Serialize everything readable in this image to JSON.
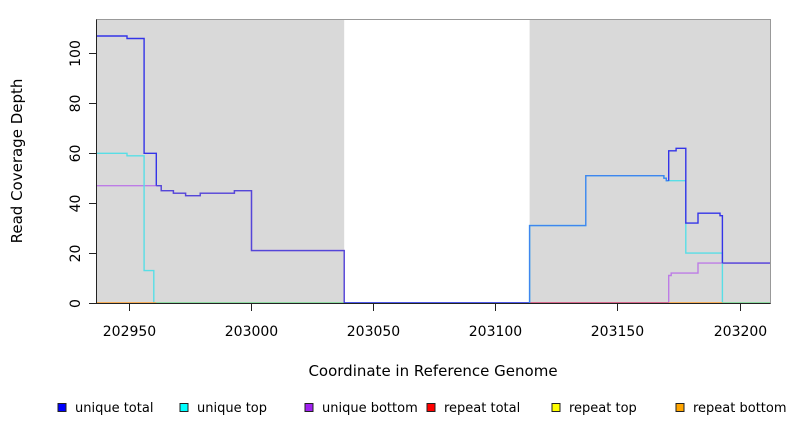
{
  "chart_data": {
    "type": "line",
    "style": "step",
    "title": "",
    "xlabel": "Coordinate in Reference Genome",
    "ylabel": "Read Coverage Depth",
    "xlim": [
      202936.5,
      203212.7
    ],
    "ylim": [
      0,
      113.6
    ],
    "xticks": [
      202950,
      203000,
      203050,
      203100,
      203150,
      203200
    ],
    "yticks": [
      0,
      20,
      40,
      60,
      80,
      100
    ],
    "grid": false,
    "legend_position": "bottom",
    "background_shading": {
      "color": "#d9d9d9",
      "regions": [
        [
          202936.5,
          203038
        ],
        [
          203114,
          203212.7
        ]
      ]
    },
    "series": [
      {
        "name": "unique total",
        "legend_color": "#0000FF",
        "segments": [
          {
            "color": "#3434e8",
            "steps": [
              [
                202936.5,
                107
              ],
              [
                202949,
                106
              ],
              [
                202956,
                60
              ],
              [
                202961,
                47
              ]
            ]
          },
          {
            "color": "#5347d8",
            "steps": [
              [
                202961,
                47
              ],
              [
                202963,
                45
              ],
              [
                202968,
                44
              ],
              [
                202973,
                43
              ],
              [
                202979,
                44
              ],
              [
                202993,
                45
              ],
              [
                203000,
                21
              ],
              [
                203038,
                0
              ]
            ]
          },
          {
            "color": "#3434e8",
            "steps": [
              [
                203038,
                0
              ],
              [
                203114,
                0
              ]
            ]
          },
          {
            "color": "#3f86ef",
            "steps": [
              [
                203114,
                0
              ],
              [
                203114,
                31
              ],
              [
                203137,
                51
              ],
              [
                203169,
                50
              ],
              [
                203170,
                49
              ],
              [
                203171,
                49
              ]
            ]
          },
          {
            "color": "#3434e8",
            "steps": [
              [
                203171,
                49
              ],
              [
                203171,
                61
              ],
              [
                203174,
                62
              ],
              [
                203178,
                32
              ],
              [
                203183,
                36
              ],
              [
                203192,
                35
              ],
              [
                203193,
                16
              ]
            ]
          },
          {
            "color": "#5347d8",
            "steps": [
              [
                203193,
                16
              ],
              [
                203212.7,
                16
              ]
            ]
          }
        ]
      },
      {
        "name": "unique top",
        "legend_color": "#00FFFF",
        "segments": [
          {
            "color": "#58dee6",
            "steps": [
              [
                202936.5,
                60
              ],
              [
                202949,
                59
              ],
              [
                202956,
                13
              ],
              [
                202960,
                0
              ],
              [
                203114,
                0
              ],
              [
                203114,
                31
              ],
              [
                203137,
                51
              ],
              [
                203169,
                50
              ],
              [
                203170,
                49
              ],
              [
                203178,
                20
              ],
              [
                203193,
                0
              ],
              [
                203212.7,
                0
              ]
            ]
          }
        ]
      },
      {
        "name": "unique bottom",
        "legend_color": "#A020F0",
        "segments": [
          {
            "color": "#bd7ce6",
            "steps": [
              [
                202936.5,
                47
              ],
              [
                202963,
                45
              ],
              [
                202968,
                44
              ],
              [
                202973,
                43
              ],
              [
                202979,
                44
              ],
              [
                202993,
                45
              ],
              [
                203000,
                21
              ],
              [
                203038,
                0
              ],
              [
                203171,
                11
              ],
              [
                203172,
                12
              ],
              [
                203183,
                16
              ],
              [
                203212.7,
                16
              ]
            ]
          }
        ]
      },
      {
        "name": "repeat total",
        "legend_color": "#FF0000",
        "segments": [
          {
            "color": "#dc5270",
            "steps": [
              [
                203114,
                0
              ],
              [
                203171,
                0
              ]
            ]
          }
        ]
      },
      {
        "name": "repeat top",
        "legend_color": "#FFFF00",
        "segments": []
      },
      {
        "name": "repeat bottom",
        "legend_color": "#FFA500",
        "segments": [
          {
            "color": "#ffa030",
            "steps": [
              [
                202936.5,
                0
              ],
              [
                202961,
                0
              ]
            ]
          },
          {
            "color": "#ffa030",
            "steps": [
              [
                203171,
                0
              ],
              [
                203193,
                0
              ]
            ]
          }
        ]
      }
    ],
    "overlap_segments": {
      "note": "unique top + repeat top coincide at depth 0; rendered light green",
      "color": "#8edc8e",
      "steps_list": [
        [
          [
            202961,
            0
          ],
          [
            203038,
            0
          ]
        ],
        [
          [
            203193,
            0
          ],
          [
            203212.7,
            0
          ]
        ]
      ]
    },
    "legend": {
      "items": [
        {
          "label": "unique total",
          "color": "#0000FF"
        },
        {
          "label": "unique top",
          "color": "#00FFFF"
        },
        {
          "label": "unique bottom",
          "color": "#A020F0"
        },
        {
          "label": "repeat total",
          "color": "#FF0000"
        },
        {
          "label": "repeat top",
          "color": "#FFFF00"
        },
        {
          "label": "repeat bottom",
          "color": "#FFA500"
        }
      ]
    }
  }
}
